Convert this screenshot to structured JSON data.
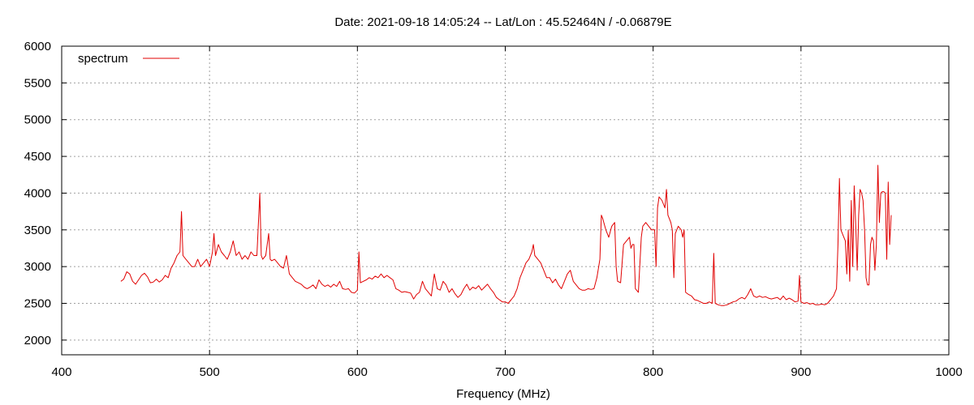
{
  "chart_data": {
    "type": "line",
    "title": "Date: 2021-09-18 14:05:24  --  Lat/Lon : 45.52464N / -0.06879E",
    "xlabel": "Frequency (MHz)",
    "ylabel": "",
    "xlim": [
      400,
      1000
    ],
    "ylim": [
      1800,
      6000
    ],
    "x_ticks": [
      400,
      500,
      600,
      700,
      800,
      900,
      1000
    ],
    "y_ticks": [
      2000,
      2500,
      3000,
      3500,
      4000,
      4500,
      5000,
      5500,
      6000
    ],
    "grid": true,
    "legend_position": "top-left",
    "series": [
      {
        "name": "spectrum",
        "color": "#e00000",
        "points": [
          [
            440,
            2800
          ],
          [
            442,
            2830
          ],
          [
            444,
            2930
          ],
          [
            446,
            2900
          ],
          [
            448,
            2800
          ],
          [
            450,
            2760
          ],
          [
            452,
            2820
          ],
          [
            454,
            2880
          ],
          [
            456,
            2910
          ],
          [
            458,
            2860
          ],
          [
            460,
            2780
          ],
          [
            462,
            2790
          ],
          [
            464,
            2830
          ],
          [
            466,
            2790
          ],
          [
            468,
            2820
          ],
          [
            470,
            2880
          ],
          [
            472,
            2850
          ],
          [
            474,
            2980
          ],
          [
            476,
            3050
          ],
          [
            478,
            3150
          ],
          [
            480,
            3200
          ],
          [
            481,
            3750
          ],
          [
            482,
            3150
          ],
          [
            484,
            3100
          ],
          [
            486,
            3050
          ],
          [
            488,
            3000
          ],
          [
            490,
            3000
          ],
          [
            492,
            3100
          ],
          [
            494,
            3000
          ],
          [
            496,
            3050
          ],
          [
            498,
            3100
          ],
          [
            500,
            3000
          ],
          [
            502,
            3200
          ],
          [
            503,
            3450
          ],
          [
            504,
            3150
          ],
          [
            506,
            3300
          ],
          [
            508,
            3200
          ],
          [
            510,
            3150
          ],
          [
            512,
            3100
          ],
          [
            514,
            3200
          ],
          [
            516,
            3350
          ],
          [
            518,
            3150
          ],
          [
            520,
            3200
          ],
          [
            522,
            3100
          ],
          [
            524,
            3150
          ],
          [
            526,
            3100
          ],
          [
            528,
            3200
          ],
          [
            530,
            3150
          ],
          [
            532,
            3150
          ],
          [
            534,
            4000
          ],
          [
            535,
            3150
          ],
          [
            536,
            3100
          ],
          [
            538,
            3150
          ],
          [
            540,
            3450
          ],
          [
            541,
            3100
          ],
          [
            542,
            3080
          ],
          [
            544,
            3100
          ],
          [
            546,
            3050
          ],
          [
            548,
            3000
          ],
          [
            550,
            2980
          ],
          [
            552,
            3150
          ],
          [
            554,
            2900
          ],
          [
            556,
            2850
          ],
          [
            558,
            2800
          ],
          [
            560,
            2780
          ],
          [
            562,
            2760
          ],
          [
            564,
            2720
          ],
          [
            566,
            2700
          ],
          [
            568,
            2720
          ],
          [
            570,
            2750
          ],
          [
            572,
            2700
          ],
          [
            574,
            2820
          ],
          [
            576,
            2760
          ],
          [
            578,
            2730
          ],
          [
            580,
            2750
          ],
          [
            582,
            2720
          ],
          [
            584,
            2760
          ],
          [
            586,
            2730
          ],
          [
            588,
            2800
          ],
          [
            590,
            2700
          ],
          [
            592,
            2690
          ],
          [
            594,
            2700
          ],
          [
            596,
            2650
          ],
          [
            598,
            2640
          ],
          [
            600,
            2680
          ],
          [
            601,
            3200
          ],
          [
            602,
            2780
          ],
          [
            604,
            2800
          ],
          [
            606,
            2820
          ],
          [
            608,
            2850
          ],
          [
            610,
            2830
          ],
          [
            612,
            2870
          ],
          [
            614,
            2850
          ],
          [
            616,
            2900
          ],
          [
            618,
            2850
          ],
          [
            620,
            2880
          ],
          [
            622,
            2850
          ],
          [
            624,
            2820
          ],
          [
            626,
            2700
          ],
          [
            628,
            2680
          ],
          [
            630,
            2650
          ],
          [
            632,
            2660
          ],
          [
            634,
            2650
          ],
          [
            636,
            2640
          ],
          [
            638,
            2560
          ],
          [
            640,
            2620
          ],
          [
            642,
            2650
          ],
          [
            644,
            2800
          ],
          [
            646,
            2700
          ],
          [
            648,
            2650
          ],
          [
            650,
            2600
          ],
          [
            652,
            2900
          ],
          [
            654,
            2700
          ],
          [
            656,
            2680
          ],
          [
            658,
            2800
          ],
          [
            660,
            2750
          ],
          [
            662,
            2650
          ],
          [
            664,
            2700
          ],
          [
            666,
            2630
          ],
          [
            668,
            2580
          ],
          [
            670,
            2620
          ],
          [
            672,
            2700
          ],
          [
            674,
            2760
          ],
          [
            676,
            2680
          ],
          [
            678,
            2720
          ],
          [
            680,
            2700
          ],
          [
            682,
            2740
          ],
          [
            684,
            2680
          ],
          [
            686,
            2720
          ],
          [
            688,
            2760
          ],
          [
            690,
            2700
          ],
          [
            692,
            2650
          ],
          [
            694,
            2580
          ],
          [
            696,
            2550
          ],
          [
            698,
            2520
          ],
          [
            700,
            2520
          ],
          [
            702,
            2500
          ],
          [
            704,
            2550
          ],
          [
            706,
            2600
          ],
          [
            708,
            2700
          ],
          [
            710,
            2850
          ],
          [
            712,
            2950
          ],
          [
            714,
            3050
          ],
          [
            716,
            3100
          ],
          [
            718,
            3200
          ],
          [
            719,
            3300
          ],
          [
            720,
            3150
          ],
          [
            722,
            3100
          ],
          [
            724,
            3050
          ],
          [
            726,
            2950
          ],
          [
            728,
            2850
          ],
          [
            730,
            2850
          ],
          [
            732,
            2780
          ],
          [
            734,
            2830
          ],
          [
            736,
            2750
          ],
          [
            738,
            2700
          ],
          [
            740,
            2800
          ],
          [
            742,
            2900
          ],
          [
            744,
            2950
          ],
          [
            746,
            2800
          ],
          [
            748,
            2750
          ],
          [
            750,
            2700
          ],
          [
            752,
            2680
          ],
          [
            754,
            2680
          ],
          [
            756,
            2700
          ],
          [
            758,
            2690
          ],
          [
            760,
            2700
          ],
          [
            762,
            2850
          ],
          [
            764,
            3100
          ],
          [
            765,
            3700
          ],
          [
            766,
            3650
          ],
          [
            768,
            3500
          ],
          [
            770,
            3400
          ],
          [
            772,
            3550
          ],
          [
            774,
            3600
          ],
          [
            775,
            3000
          ],
          [
            776,
            2800
          ],
          [
            778,
            2780
          ],
          [
            780,
            3300
          ],
          [
            782,
            3350
          ],
          [
            784,
            3400
          ],
          [
            785,
            3250
          ],
          [
            786,
            3300
          ],
          [
            787,
            3300
          ],
          [
            788,
            2700
          ],
          [
            790,
            2650
          ],
          [
            792,
            3400
          ],
          [
            793,
            3550
          ],
          [
            795,
            3600
          ],
          [
            797,
            3550
          ],
          [
            799,
            3500
          ],
          [
            801,
            3500
          ],
          [
            802,
            3000
          ],
          [
            803,
            3800
          ],
          [
            804,
            3950
          ],
          [
            806,
            3900
          ],
          [
            808,
            3800
          ],
          [
            809,
            4050
          ],
          [
            810,
            3700
          ],
          [
            812,
            3600
          ],
          [
            813,
            3500
          ],
          [
            814,
            2850
          ],
          [
            815,
            3450
          ],
          [
            817,
            3550
          ],
          [
            819,
            3500
          ],
          [
            820,
            3400
          ],
          [
            821,
            3500
          ],
          [
            822,
            2650
          ],
          [
            824,
            2620
          ],
          [
            826,
            2600
          ],
          [
            828,
            2550
          ],
          [
            830,
            2540
          ],
          [
            832,
            2520
          ],
          [
            834,
            2500
          ],
          [
            836,
            2500
          ],
          [
            838,
            2520
          ],
          [
            840,
            2500
          ],
          [
            841,
            3180
          ],
          [
            842,
            2500
          ],
          [
            844,
            2480
          ],
          [
            846,
            2470
          ],
          [
            848,
            2470
          ],
          [
            850,
            2480
          ],
          [
            852,
            2500
          ],
          [
            854,
            2520
          ],
          [
            856,
            2530
          ],
          [
            858,
            2560
          ],
          [
            860,
            2580
          ],
          [
            862,
            2560
          ],
          [
            864,
            2620
          ],
          [
            866,
            2700
          ],
          [
            868,
            2600
          ],
          [
            870,
            2580
          ],
          [
            872,
            2600
          ],
          [
            874,
            2580
          ],
          [
            876,
            2590
          ],
          [
            878,
            2570
          ],
          [
            880,
            2560
          ],
          [
            882,
            2570
          ],
          [
            884,
            2580
          ],
          [
            886,
            2550
          ],
          [
            888,
            2600
          ],
          [
            890,
            2550
          ],
          [
            892,
            2570
          ],
          [
            894,
            2550
          ],
          [
            896,
            2520
          ],
          [
            898,
            2530
          ],
          [
            899,
            2880
          ],
          [
            900,
            2520
          ],
          [
            902,
            2500
          ],
          [
            904,
            2510
          ],
          [
            906,
            2490
          ],
          [
            908,
            2500
          ],
          [
            910,
            2480
          ],
          [
            912,
            2480
          ],
          [
            914,
            2490
          ],
          [
            916,
            2480
          ],
          [
            918,
            2500
          ],
          [
            920,
            2550
          ],
          [
            922,
            2600
          ],
          [
            924,
            2700
          ],
          [
            925,
            3300
          ],
          [
            926,
            4200
          ],
          [
            927,
            3500
          ],
          [
            928,
            3450
          ],
          [
            930,
            3350
          ],
          [
            931,
            2900
          ],
          [
            932,
            3500
          ],
          [
            933,
            2800
          ],
          [
            934,
            3900
          ],
          [
            935,
            3000
          ],
          [
            936,
            4100
          ],
          [
            937,
            3600
          ],
          [
            938,
            2950
          ],
          [
            939,
            3700
          ],
          [
            940,
            4050
          ],
          [
            941,
            4000
          ],
          [
            942,
            3900
          ],
          [
            943,
            3500
          ],
          [
            944,
            2850
          ],
          [
            945,
            2750
          ],
          [
            946,
            2750
          ],
          [
            947,
            3300
          ],
          [
            948,
            3400
          ],
          [
            949,
            3350
          ],
          [
            950,
            2950
          ],
          [
            951,
            3300
          ],
          [
            952,
            4380
          ],
          [
            953,
            3600
          ],
          [
            954,
            4000
          ],
          [
            955,
            4020
          ],
          [
            956,
            4020
          ],
          [
            957,
            4000
          ],
          [
            958,
            3100
          ],
          [
            959,
            4150
          ],
          [
            960,
            3300
          ],
          [
            961,
            3700
          ]
        ]
      }
    ]
  }
}
